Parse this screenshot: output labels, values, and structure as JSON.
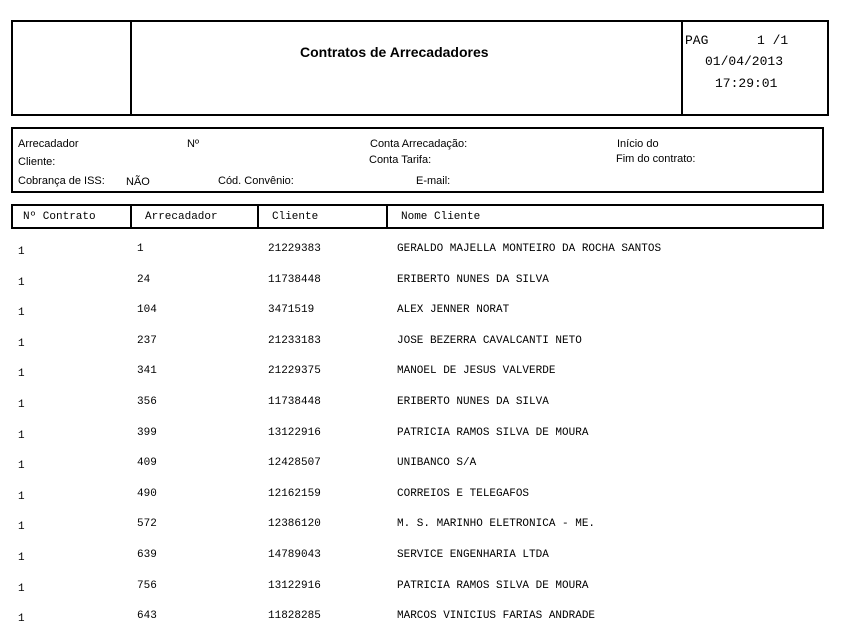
{
  "header": {
    "title": "Contratos de Arrecadadores",
    "page_label": "PAG",
    "page_value": "1 /1",
    "date": "01/04/2013",
    "time": "17:29:01"
  },
  "filters": {
    "arrecadador": "Arrecadador",
    "numero": "Nº",
    "conta_arrecadacao": "Conta Arrecadação:",
    "inicio": "Início do",
    "cliente": "Cliente:",
    "conta_tarifa": "Conta Tarifa:",
    "fim": "Fim do contrato:",
    "cobranca_iss": "Cobrança de ISS:",
    "cobranca_iss_value": "NÃO",
    "cod_convenio": "Cód. Convênio:",
    "email": "E-mail:"
  },
  "table": {
    "columns": [
      "Nº Contrato",
      "Arrecadador",
      "Cliente",
      "Nome Cliente"
    ],
    "rows": [
      [
        "1",
        "1",
        "21229383",
        "GERALDO MAJELLA MONTEIRO DA ROCHA SANTOS"
      ],
      [
        "1",
        "24",
        "11738448",
        "ERIBERTO NUNES DA SILVA"
      ],
      [
        "1",
        "104",
        "3471519",
        "ALEX JENNER NORAT"
      ],
      [
        "1",
        "237",
        "21233183",
        "JOSE BEZERRA CAVALCANTI NETO"
      ],
      [
        "1",
        "341",
        "21229375",
        "MANOEL DE JESUS VALVERDE"
      ],
      [
        "1",
        "356",
        "11738448",
        "ERIBERTO NUNES DA SILVA"
      ],
      [
        "1",
        "399",
        "13122916",
        "PATRICIA RAMOS SILVA DE MOURA"
      ],
      [
        "1",
        "409",
        "12428507",
        "UNIBANCO S/A"
      ],
      [
        "1",
        "490",
        "12162159",
        "CORREIOS E TELEGAFOS"
      ],
      [
        "1",
        "572",
        "12386120",
        "M. S. MARINHO ELETRONICA - ME."
      ],
      [
        "1",
        "639",
        "14789043",
        "SERVICE ENGENHARIA LTDA"
      ],
      [
        "1",
        "756",
        "13122916",
        "PATRICIA RAMOS SILVA DE MOURA"
      ],
      [
        "1",
        "643",
        "11828285",
        "MARCOS VINICIUS FARIAS ANDRADE"
      ]
    ]
  }
}
